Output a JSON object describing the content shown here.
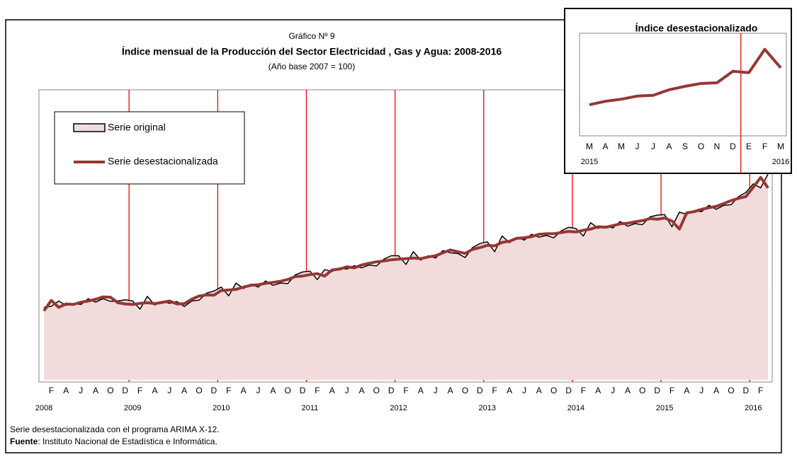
{
  "chart_data": [
    {
      "type": "line",
      "pretitle": "Gráfico Nº  9",
      "title": "Índice mensual de la Producción del Sector Electricidad , Gas y Agua: 2008-2016",
      "subtitle": "(Año base 2007 = 100)",
      "categories": [
        null,
        "F",
        null,
        "A",
        null,
        "J",
        null,
        "A",
        null,
        "O",
        null,
        "D",
        null,
        "F",
        null,
        "A",
        null,
        "J",
        null,
        "A",
        null,
        "O",
        null,
        "D",
        null,
        "F",
        null,
        "A",
        null,
        "J",
        null,
        "A",
        null,
        "O",
        null,
        "D",
        null,
        "F",
        null,
        "A",
        null,
        "J",
        null,
        "A",
        null,
        "O",
        null,
        "D",
        null,
        "F",
        null,
        "A",
        null,
        "J",
        null,
        "A",
        null,
        "O",
        null,
        "D",
        null,
        "F",
        null,
        "A",
        null,
        "J",
        null,
        "A",
        null,
        "O",
        null,
        "D",
        null,
        "F",
        null,
        "A",
        null,
        "J",
        null,
        "A",
        null,
        "O",
        null,
        "D",
        null,
        "F",
        null,
        "A",
        null,
        "J",
        null,
        "A",
        null,
        "O",
        null,
        "D",
        null,
        "F",
        null
      ],
      "year_labels": [
        "2008",
        "2009",
        "2010",
        "2011",
        "2012",
        "2013",
        "2014",
        "2015",
        "2016"
      ],
      "ylim": [
        80,
        180
      ],
      "series": [
        {
          "name": "Serie original",
          "color": "#000000",
          "fill": "#f2dcdb",
          "values": [
            105.0,
            105.4,
            107.2,
            105.7,
            106.4,
            106.0,
            108.0,
            106.8,
            108.0,
            107.1,
            107.2,
            107.6,
            107.2,
            104.4,
            108.8,
            105.8,
            107.1,
            106.4,
            107.0,
            105.3,
            107.2,
            107.5,
            109.9,
            110.6,
            112.0,
            109.0,
            113.4,
            111.5,
            113.0,
            112.0,
            114.1,
            112.6,
            113.4,
            113.2,
            116.2,
            117.2,
            117.5,
            114.6,
            118.0,
            117.4,
            118.6,
            118.2,
            119.4,
            118.6,
            119.6,
            119.3,
            121.6,
            122.8,
            122.8,
            119.8,
            124.2,
            121.3,
            122.8,
            122.0,
            124.6,
            123.8,
            123.6,
            122.2,
            125.6,
            127.0,
            127.6,
            124.2,
            129.6,
            127.3,
            129.2,
            128.2,
            130.2,
            129.2,
            129.8,
            129.0,
            131.4,
            132.6,
            132.2,
            129.6,
            134.2,
            132.3,
            133.0,
            132.4,
            134.6,
            133.0,
            133.9,
            133.5,
            136.2,
            136.8,
            137.0,
            132.8,
            137.8,
            137.1,
            138.4,
            138.0,
            140.2,
            138.8,
            140.2,
            140.4,
            143.2,
            144.6,
            147.6,
            146.2,
            151.0
          ]
        },
        {
          "name": "Serie desestacionalizada",
          "color": "#953735",
          "values": [
            103.8,
            107.4,
            105.0,
            106.2,
            106.0,
            106.8,
            107.2,
            107.8,
            108.6,
            108.5,
            106.6,
            106.2,
            106.0,
            106.4,
            106.6,
            106.3,
            106.7,
            107.2,
            106.2,
            106.3,
            107.8,
            108.9,
            109.3,
            109.2,
            110.8,
            111.0,
            111.2,
            112.0,
            112.6,
            112.8,
            113.3,
            113.6,
            114.0,
            114.6,
            115.6,
            115.8,
            116.3,
            116.6,
            115.8,
            117.9,
            118.2,
            119.0,
            118.6,
            119.6,
            120.2,
            120.7,
            121.0,
            121.4,
            121.6,
            121.8,
            122.0,
            121.8,
            122.4,
            122.8,
            123.8,
            124.8,
            124.2,
            123.6,
            125.0,
            125.6,
            126.4,
            126.2,
            127.4,
            127.8,
            128.8,
            129.0,
            129.4,
            130.2,
            130.4,
            130.4,
            130.8,
            131.2,
            131.0,
            131.6,
            132.0,
            132.8,
            132.6,
            133.2,
            133.8,
            134.0,
            134.5,
            134.9,
            135.6,
            135.4,
            135.8,
            134.8,
            132.0,
            137.6,
            138.0,
            138.8,
            139.4,
            139.8,
            140.8,
            141.8,
            142.6,
            143.2,
            146.4,
            149.8,
            146.2
          ]
        }
      ],
      "notes": [
        "Serie desestacionalizada con el programa ARIMA X-12."
      ],
      "source_label": "Fuente",
      "source_text": ": Instituto Nacional de Estadística e Informática."
    },
    {
      "type": "line",
      "title": "Índice desestacionalizado",
      "categories": [
        "M",
        "A",
        "M",
        "J",
        "J",
        "A",
        "S",
        "O",
        "N",
        "D",
        "E",
        "F",
        "M"
      ],
      "year_labels": [
        "2015",
        "2016"
      ],
      "ylim": [
        126,
        155
      ],
      "series": [
        {
          "color": "#953735",
          "values": [
            134.5,
            135.5,
            136.1,
            137.0,
            137.2,
            138.8,
            139.8,
            140.6,
            140.8,
            144.1,
            143.7,
            150.4,
            145.1
          ]
        }
      ]
    }
  ]
}
